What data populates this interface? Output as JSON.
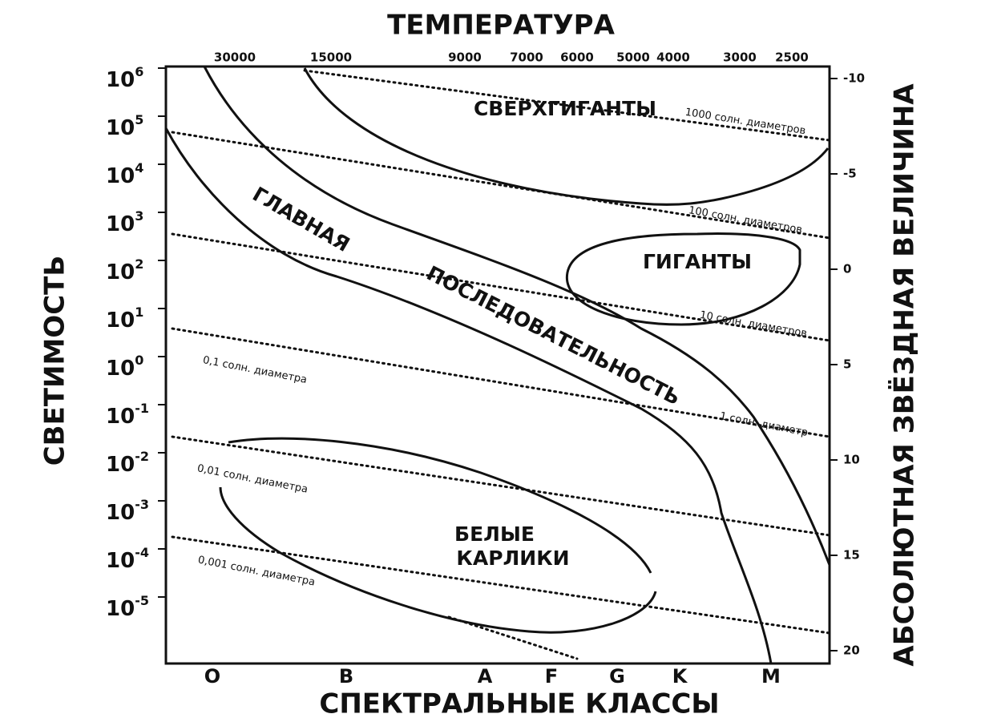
{
  "title": "ТЕМПЕРАТУРА",
  "x_axis_title": "СПЕКТРАЛЬНЫЕ КЛАССЫ",
  "y_axis_title": "СВЕТИМОСТЬ",
  "y2_axis_title": "АБСОЛЮТНАЯ ЗВЁЗДНАЯ ВЕЛИЧИНА",
  "temperature_ticks": [
    "30000",
    "15000",
    "9000",
    "7000",
    "6000",
    "5000",
    "4000",
    "3000",
    "2500"
  ],
  "spectral_classes": [
    "O",
    "B",
    "A",
    "F",
    "G",
    "K",
    "M"
  ],
  "luminosity_ticks": [
    {
      "base": "10",
      "exponent": "6"
    },
    {
      "base": "10",
      "exponent": "5"
    },
    {
      "base": "10",
      "exponent": "4"
    },
    {
      "base": "10",
      "exponent": "3"
    },
    {
      "base": "10",
      "exponent": "2"
    },
    {
      "base": "10",
      "exponent": "1"
    },
    {
      "base": "10",
      "exponent": "0"
    },
    {
      "base": "10",
      "exponent": "-1"
    },
    {
      "base": "10",
      "exponent": "-2"
    },
    {
      "base": "10",
      "exponent": "-3"
    },
    {
      "base": "10",
      "exponent": "-4"
    },
    {
      "base": "10",
      "exponent": "-5"
    }
  ],
  "magnitude_ticks": [
    "-10",
    "-5",
    "0",
    "5",
    "10",
    "15",
    "20"
  ],
  "regions": {
    "supergiants": "СВЕРХГИГАНТЫ",
    "giants": "ГИГАНТЫ",
    "main_sequence_1": "ГЛАВНАЯ",
    "main_sequence_2": "ПОСЛЕДОВАТЕЛЬНОСТЬ",
    "white_dwarfs_1": "БЕЛЫЕ",
    "white_dwarfs_2": "КАРЛИКИ"
  },
  "diameter_lines": [
    "1000 солн. диаметров",
    "100 солн. диаметров",
    "10 солн. диаметров",
    "1 солн. диаметр",
    "0,1 солн. диаметра",
    "0,01 солн. диаметра",
    "0,001 солн. диаметра"
  ]
}
